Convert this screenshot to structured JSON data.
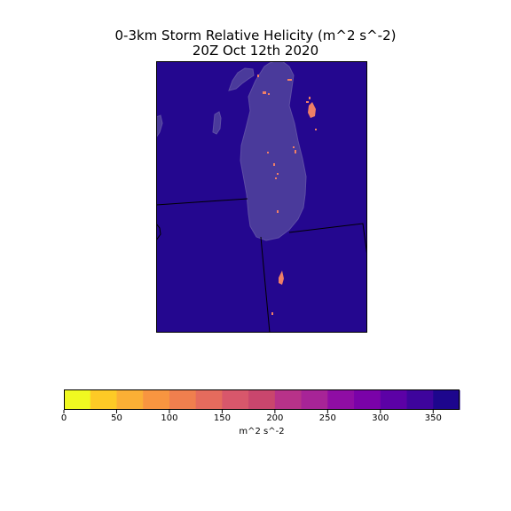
{
  "title": {
    "line1": "0-3km Storm Relative Helicity (m^2 s^-2)",
    "line2": "20Z Oct 12th 2020"
  },
  "colors": {
    "background_field": "#24078f",
    "lake": "#4a3a9b",
    "lake_edge": "#5f4fa6",
    "boundary": "#000000",
    "patch": "#ef7f66"
  },
  "colorbar": {
    "label": "m^2 s^-2",
    "min": 0,
    "max": 375,
    "step": 25,
    "ticks": [
      0,
      50,
      100,
      150,
      200,
      250,
      300,
      350
    ],
    "tick_labels": [
      "0",
      "50",
      "100",
      "150",
      "200",
      "250",
      "300",
      "350"
    ],
    "bin_colors": [
      "#f0f921",
      "#fdca26",
      "#fbaf35",
      "#f89540",
      "#f07f4e",
      "#e56b5d",
      "#d8576b",
      "#c9466d",
      "#b83289",
      "#a72497",
      "#8f0da4",
      "#7a02a8",
      "#5c01a6",
      "#3e049c",
      "#1d068d"
    ]
  }
}
